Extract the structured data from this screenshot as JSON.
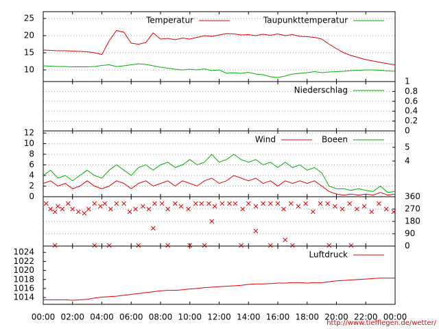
{
  "chart_data": [
    {
      "type": "line",
      "ylim": [
        6.6,
        27
      ],
      "yticks": [
        10,
        15,
        20,
        25
      ],
      "grid": true,
      "y_axis_position": "left",
      "x": [
        0,
        0.5,
        1,
        1.5,
        2,
        2.5,
        3,
        3.5,
        4,
        4.5,
        5,
        5.5,
        6,
        6.5,
        7,
        7.5,
        8,
        8.5,
        9,
        9.5,
        10,
        10.5,
        11,
        11.5,
        12,
        12.5,
        13,
        13.5,
        14,
        14.5,
        15,
        15.5,
        16,
        16.5,
        17,
        17.5,
        18,
        18.5,
        19,
        19.5,
        20,
        20.5,
        21,
        21.5,
        22,
        22.5,
        23,
        23.5,
        24
      ],
      "series": [
        {
          "name": "Temperatur",
          "color": "#e00000",
          "values": [
            15.8,
            15.7,
            15.6,
            15.6,
            15.5,
            15.4,
            15.3,
            15.0,
            14.5,
            18.5,
            21.5,
            21.0,
            17.8,
            17.5,
            18.0,
            20.8,
            19.0,
            19.2,
            18.8,
            19.3,
            19.0,
            19.5,
            20.0,
            19.8,
            20.2,
            20.6,
            20.5,
            20.2,
            20.3,
            20.0,
            20.4,
            20.1,
            20.5,
            20.0,
            20.3,
            19.8,
            19.7,
            19.5,
            19.0,
            17.5,
            16.2,
            15.0,
            14.2,
            13.6,
            13.0,
            12.6,
            12.2,
            11.8,
            11.5
          ]
        },
        {
          "name": "Taupunkttemperatur",
          "color": "#00b000",
          "values": [
            11.2,
            11.1,
            11.0,
            11.0,
            10.9,
            10.9,
            10.9,
            11.0,
            11.3,
            11.5,
            11.0,
            11.2,
            11.5,
            11.8,
            11.6,
            11.2,
            10.8,
            10.5,
            10.2,
            10.0,
            10.2,
            10.0,
            10.3,
            9.8,
            10.0,
            9.0,
            9.2,
            9.0,
            9.3,
            8.8,
            8.6,
            8.0,
            7.8,
            8.2,
            8.8,
            9.0,
            9.2,
            9.5,
            9.2,
            9.4,
            9.5,
            9.6,
            9.8,
            9.9,
            10.0,
            10.0,
            9.9,
            9.7,
            9.6
          ]
        }
      ]
    },
    {
      "type": "line",
      "ylim": [
        0,
        1
      ],
      "yticks": [
        0,
        0.2,
        0.4,
        0.6,
        0.8,
        1
      ],
      "grid": true,
      "y_axis_position": "right",
      "x": [
        0,
        24
      ],
      "series": [
        {
          "name": "Niederschlag",
          "color": "#00b000",
          "values": [
            0,
            0
          ]
        }
      ]
    },
    {
      "type": "line",
      "ylim": [
        0,
        12.4
      ],
      "yticks": [
        0,
        2,
        4,
        6,
        8,
        10,
        12
      ],
      "grid": true,
      "y_axis_position": "left",
      "y2lim": [
        1.4,
        6.2
      ],
      "y2ticks": [
        4,
        5
      ],
      "x": [
        0,
        0.5,
        1,
        1.5,
        2,
        2.5,
        3,
        3.5,
        4,
        4.5,
        5,
        5.5,
        6,
        6.5,
        7,
        7.5,
        8,
        8.5,
        9,
        9.5,
        10,
        10.5,
        11,
        11.5,
        12,
        12.5,
        13,
        13.5,
        14,
        14.5,
        15,
        15.5,
        16,
        16.5,
        17,
        17.5,
        18,
        18.5,
        19,
        19.5,
        20,
        20.5,
        21,
        21.5,
        22,
        22.5,
        23,
        23.5,
        24
      ],
      "series": [
        {
          "name": "Wind",
          "color": "#e00000",
          "values": [
            2.5,
            3,
            2,
            2.5,
            1.5,
            2,
            3,
            2,
            1.5,
            2,
            3,
            2.5,
            1.5,
            2.5,
            3,
            2,
            2.5,
            3,
            2,
            3,
            2.5,
            2,
            3,
            3.5,
            2.5,
            3,
            4,
            3.5,
            3,
            3.5,
            2.5,
            3,
            2,
            3,
            2.5,
            3,
            2.5,
            3,
            2,
            1,
            0.5,
            0.3,
            0.5,
            0.3,
            0.5,
            0.3,
            0.8,
            0.3,
            0.5
          ]
        },
        {
          "name": "Boeen",
          "color": "#00b000",
          "values": [
            4,
            5,
            3.5,
            4,
            3,
            4,
            5,
            4,
            3.5,
            5,
            6,
            5,
            4,
            5.5,
            6,
            5,
            6,
            6.5,
            5.5,
            6,
            7,
            6,
            6.5,
            8,
            6.5,
            7,
            8,
            7,
            6.5,
            7,
            6,
            6.5,
            5.5,
            6.5,
            5.5,
            6,
            5,
            5.5,
            4.5,
            2,
            1.5,
            1.5,
            1.2,
            1.5,
            1.2,
            1,
            2,
            0.8,
            1
          ]
        }
      ]
    },
    {
      "type": "scatter",
      "ylim": [
        0,
        360
      ],
      "yticks": [
        0,
        90,
        180,
        270,
        360
      ],
      "grid": true,
      "y_axis_position": "right",
      "color": "#e00000",
      "x": [
        0.2,
        0.5,
        0.8,
        1.0,
        1.3,
        1.7,
        2.0,
        2.4,
        2.8,
        3.1,
        3.5,
        3.9,
        4.2,
        4.6,
        5.0,
        5.5,
        5.9,
        6.3,
        6.8,
        7.2,
        7.6,
        8.1,
        8.5,
        9.0,
        9.4,
        9.9,
        10.4,
        10.8,
        11.3,
        11.7,
        12.2,
        12.7,
        13.1,
        13.6,
        14.0,
        14.5,
        15.0,
        15.5,
        16.0,
        16.4,
        16.9,
        17.4,
        17.9,
        18.4,
        18.9,
        19.4,
        19.9,
        20.4,
        20.9,
        21.4,
        21.9,
        22.4,
        22.9,
        23.4,
        23.9,
        0.8,
        3.5,
        4.5,
        6.5,
        8.5,
        10,
        11,
        13.5,
        15.5,
        17,
        19.5,
        21,
        7.5,
        11.5,
        14.5,
        16.5
      ],
      "values": [
        310,
        270,
        250,
        290,
        270,
        310,
        270,
        250,
        240,
        270,
        310,
        290,
        310,
        270,
        310,
        310,
        250,
        270,
        290,
        270,
        310,
        310,
        270,
        310,
        290,
        270,
        310,
        310,
        310,
        290,
        310,
        310,
        310,
        270,
        310,
        290,
        310,
        310,
        310,
        270,
        310,
        290,
        310,
        250,
        310,
        310,
        290,
        270,
        310,
        270,
        290,
        250,
        310,
        270,
        250,
        5,
        5,
        5,
        5,
        5,
        5,
        5,
        5,
        5,
        5,
        5,
        5,
        130,
        180,
        110,
        45
      ]
    },
    {
      "type": "line",
      "ylim": [
        1012.5,
        1025.4
      ],
      "yticks": [
        1014,
        1016,
        1018,
        1020,
        1022,
        1024
      ],
      "grid": false,
      "y_axis_position": "left",
      "xlim": [
        0,
        24
      ],
      "xticks": [
        {
          "value": 0,
          "label": "00:00"
        },
        {
          "value": 2,
          "label": "02:00"
        },
        {
          "value": 4,
          "label": "04:00"
        },
        {
          "value": 6,
          "label": "06:00"
        },
        {
          "value": 8,
          "label": "08:00"
        },
        {
          "value": 10,
          "label": "10:00"
        },
        {
          "value": 12,
          "label": "12:00"
        },
        {
          "value": 14,
          "label": "14:00"
        },
        {
          "value": 16,
          "label": "16:00"
        },
        {
          "value": 18,
          "label": "18:00"
        },
        {
          "value": 20,
          "label": "20:00"
        },
        {
          "value": 22,
          "label": "22:00"
        },
        {
          "value": 24,
          "label": "00:00"
        }
      ],
      "x": [
        0,
        0.5,
        1,
        1.5,
        2,
        2.5,
        3,
        3.5,
        4,
        4.5,
        5,
        5.5,
        6,
        6.5,
        7,
        7.5,
        8,
        8.5,
        9,
        9.5,
        10,
        10.5,
        11,
        11.5,
        12,
        12.5,
        13,
        13.5,
        14,
        14.5,
        15,
        15.5,
        16,
        16.5,
        17,
        17.5,
        18,
        18.5,
        19,
        19.5,
        20,
        20.5,
        21,
        21.5,
        22,
        22.5,
        23,
        23.5,
        24
      ],
      "series": [
        {
          "name": "Luftdruck",
          "color": "#e00000",
          "values": [
            1013.5,
            1013.5,
            1013.5,
            1013.5,
            1013.4,
            1013.5,
            1013.6,
            1013.9,
            1014.1,
            1014.2,
            1014.3,
            1014.5,
            1014.7,
            1014.9,
            1015.1,
            1015.3,
            1015.5,
            1015.6,
            1015.6,
            1015.7,
            1015.9,
            1016.0,
            1016.2,
            1016.3,
            1016.4,
            1016.5,
            1016.6,
            1016.7,
            1016.9,
            1017.0,
            1017.0,
            1017.1,
            1017.2,
            1017.2,
            1017.3,
            1017.3,
            1017.2,
            1017.3,
            1017.3,
            1017.5,
            1017.7,
            1017.8,
            1017.9,
            1018.0,
            1018.1,
            1018.2,
            1018.3,
            1018.3,
            1018.3
          ]
        }
      ]
    }
  ],
  "footer": "http://www.tiefflegen.de/wetter/"
}
